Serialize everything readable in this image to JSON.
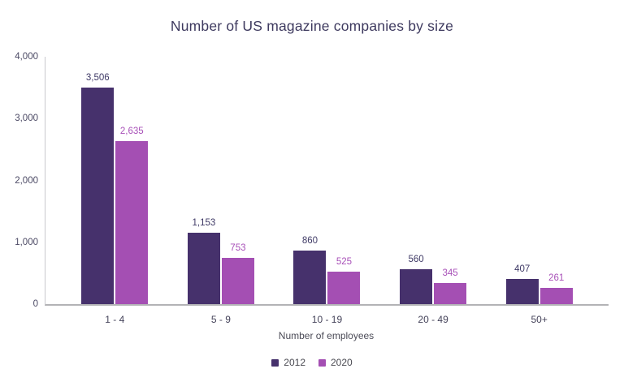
{
  "title": "Number of US magazine companies by size",
  "chart_data": {
    "type": "bar",
    "categories": [
      "1 - 4",
      "5 - 9",
      "10 - 19",
      "20 - 49",
      "50+"
    ],
    "series": [
      {
        "name": "2012",
        "color": "#46316C",
        "label_color": "#3F3A66",
        "values": [
          3506,
          1153,
          860,
          560,
          407
        ]
      },
      {
        "name": "2020",
        "color": "#A44FB3",
        "label_color": "#A850B8",
        "values": [
          2635,
          753,
          525,
          345,
          261
        ]
      }
    ],
    "title": "Number of US magazine companies by size",
    "xlabel": "Number of employees",
    "ylabel": "",
    "ylim": [
      0,
      4000
    ],
    "yticks": [
      0,
      1000,
      2000,
      3000,
      4000
    ],
    "grid": false,
    "legend_position": "bottom",
    "value_labels": true
  },
  "colors": {
    "title": "#3E3A5F",
    "axis_line": "#B3B3B6",
    "y_axis_line": "#C9C9CE",
    "tick_label": "#4B4964",
    "category_label": "#45435A",
    "legend_text": "#4A4A52",
    "background": "#FFFFFF"
  }
}
